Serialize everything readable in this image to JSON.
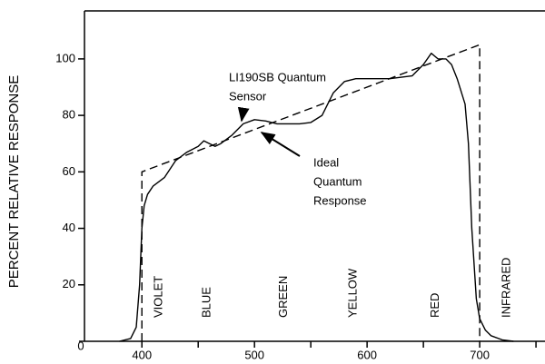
{
  "chart_data": {
    "type": "line",
    "ylabel": "PERCENT RELATIVE RESPONSE",
    "xlim": [
      349,
      758
    ],
    "ylim": [
      0,
      117
    ],
    "xticks": [
      400,
      500,
      600,
      700
    ],
    "xminor_ticks": [
      450,
      550,
      650,
      750
    ],
    "yticks": [
      0,
      20,
      40,
      60,
      80,
      100
    ],
    "series": [
      {
        "name": "LI190SB Quantum Sensor",
        "color": "#000000",
        "dash": false,
        "x": [
          380,
          390,
          395,
          398,
          400,
          402,
          405,
          410,
          420,
          430,
          440,
          450,
          455,
          460,
          465,
          470,
          480,
          490,
          500,
          510,
          520,
          540,
          550,
          560,
          570,
          580,
          590,
          600,
          620,
          640,
          650,
          657,
          663,
          670,
          675,
          680,
          687,
          690,
          693,
          697,
          700,
          705,
          710,
          720,
          730
        ],
        "values": [
          0,
          1,
          5,
          20,
          40,
          48,
          52,
          55,
          58,
          64,
          67,
          69,
          71,
          70,
          69,
          70,
          73,
          77,
          78.5,
          78,
          77,
          77,
          77.5,
          80,
          88,
          92,
          93,
          93,
          93,
          94,
          98,
          102,
          100,
          100,
          98,
          93,
          84,
          70,
          40,
          15,
          8,
          4,
          2,
          0.5,
          0
        ]
      },
      {
        "name": "Ideal Quantum Response",
        "color": "#000000",
        "dash": true,
        "x": [
          400,
          400,
          700,
          700
        ],
        "values": [
          0,
          60,
          105,
          0
        ]
      }
    ],
    "bands": [
      {
        "label": "VIOLET",
        "x": 415
      },
      {
        "label": "BLUE",
        "x": 458
      },
      {
        "label": "GREEN",
        "x": 526
      },
      {
        "label": "YELLOW",
        "x": 588
      },
      {
        "label": "RED",
        "x": 661
      },
      {
        "label": "INFRARED",
        "x": 724
      }
    ],
    "annotations": [
      {
        "lines": [
          "LI190SB Quantum",
          "Sensor"
        ]
      },
      {
        "lines": [
          "Ideal",
          "Quantum",
          "Response"
        ]
      }
    ]
  }
}
